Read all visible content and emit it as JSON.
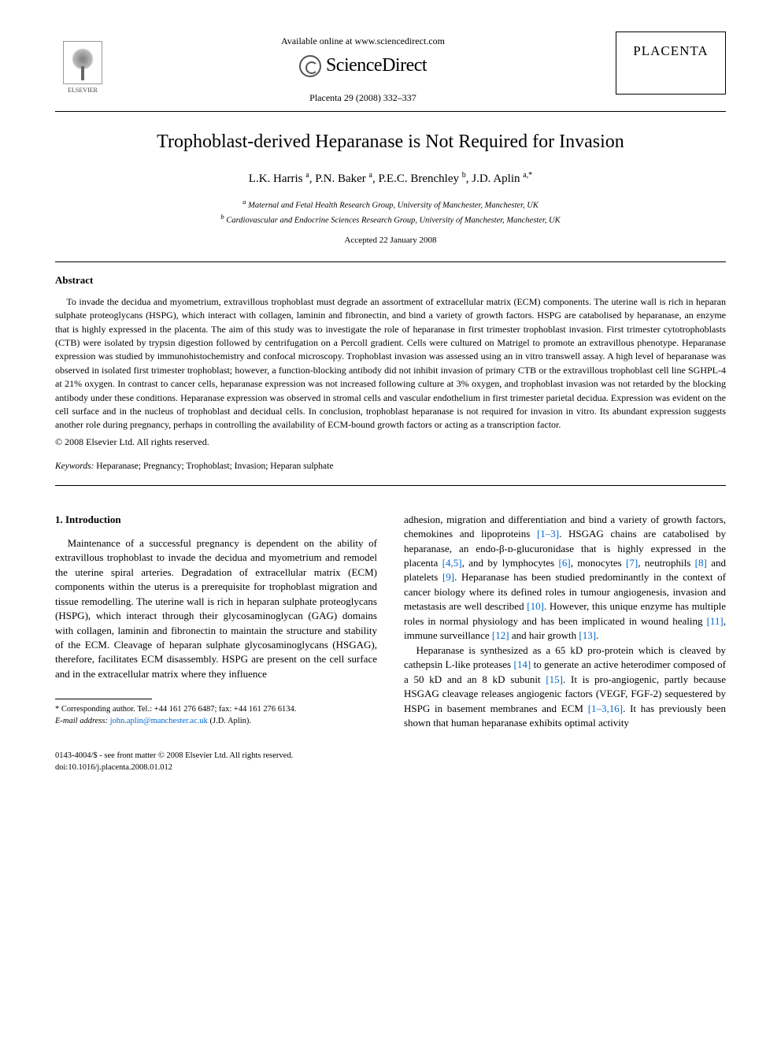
{
  "header": {
    "publisher_name": "ELSEVIER",
    "available_line": "Available online at www.sciencedirect.com",
    "sd_brand": "ScienceDirect",
    "journal_ref": "Placenta 29 (2008) 332–337",
    "journal_name": "PLACENTA"
  },
  "article": {
    "title": "Trophoblast-derived Heparanase is Not Required for Invasion",
    "authors_html": "L.K. Harris <sup>a</sup>, P.N. Baker <sup>a</sup>, P.E.C. Brenchley <sup>b</sup>, J.D. Aplin <sup>a,*</sup>",
    "affiliations": {
      "a": "Maternal and Fetal Health Research Group, University of Manchester, Manchester, UK",
      "b": "Cardiovascular and Endocrine Sciences Research Group, University of Manchester, Manchester, UK"
    },
    "accepted": "Accepted 22 January 2008"
  },
  "abstract": {
    "heading": "Abstract",
    "text": "To invade the decidua and myometrium, extravillous trophoblast must degrade an assortment of extracellular matrix (ECM) components. The uterine wall is rich in heparan sulphate proteoglycans (HSPG), which interact with collagen, laminin and fibronectin, and bind a variety of growth factors. HSPG are catabolised by heparanase, an enzyme that is highly expressed in the placenta. The aim of this study was to investigate the role of heparanase in first trimester trophoblast invasion. First trimester cytotrophoblasts (CTB) were isolated by trypsin digestion followed by centrifugation on a Percoll gradient. Cells were cultured on Matrigel to promote an extravillous phenotype. Heparanase expression was studied by immunohistochemistry and confocal microscopy. Trophoblast invasion was assessed using an in vitro transwell assay. A high level of heparanase was observed in isolated first trimester trophoblast; however, a function-blocking antibody did not inhibit invasion of primary CTB or the extravillous trophoblast cell line SGHPL-4 at 21% oxygen. In contrast to cancer cells, heparanase expression was not increased following culture at 3% oxygen, and trophoblast invasion was not retarded by the blocking antibody under these conditions. Heparanase expression was observed in stromal cells and vascular endothelium in first trimester parietal decidua. Expression was evident on the cell surface and in the nucleus of trophoblast and decidual cells. In conclusion, trophoblast heparanase is not required for invasion in vitro. Its abundant expression suggests another role during pregnancy, perhaps in controlling the availability of ECM-bound growth factors or acting as a transcription factor.",
    "copyright": "© 2008 Elsevier Ltd. All rights reserved.",
    "keywords_label": "Keywords:",
    "keywords": "Heparanase; Pregnancy; Trophoblast; Invasion; Heparan sulphate"
  },
  "body": {
    "section_heading": "1. Introduction",
    "col1_p1": "Maintenance of a successful pregnancy is dependent on the ability of extravillous trophoblast to invade the decidua and myometrium and remodel the uterine spiral arteries. Degradation of extracellular matrix (ECM) components within the uterus is a prerequisite for trophoblast migration and tissue remodelling. The uterine wall is rich in heparan sulphate proteoglycans (HSPG), which interact through their glycosaminoglycan (GAG) domains with collagen, laminin and fibronectin to maintain the structure and stability of the ECM. Cleavage of heparan sulphate glycosaminoglycans (HSGAG), therefore, facilitates ECM disassembly. HSPG are present on the cell surface and in the extracellular matrix where they influence",
    "col2_p1_pre": "adhesion, migration and differentiation and bind a variety of growth factors, chemokines and lipoproteins ",
    "col2_p1_ref1": "[1–3]",
    "col2_p1_mid1": ". HSGAG chains are catabolised by heparanase, an endo-β-ᴅ-glucuronidase that is highly expressed in the placenta ",
    "col2_p1_ref2": "[4,5]",
    "col2_p1_mid2": ", and by lymphocytes ",
    "col2_p1_ref3": "[6]",
    "col2_p1_mid3": ", monocytes ",
    "col2_p1_ref4": "[7]",
    "col2_p1_mid4": ", neutrophils ",
    "col2_p1_ref5": "[8]",
    "col2_p1_mid5": " and platelets ",
    "col2_p1_ref6": "[9]",
    "col2_p1_mid6": ". Heparanase has been studied predominantly in the context of cancer biology where its defined roles in tumour angiogenesis, invasion and metastasis are well described ",
    "col2_p1_ref7": "[10]",
    "col2_p1_mid7": ". However, this unique enzyme has multiple roles in normal physiology and has been implicated in wound healing ",
    "col2_p1_ref8": "[11]",
    "col2_p1_mid8": ", immune surveillance ",
    "col2_p1_ref9": "[12]",
    "col2_p1_mid9": " and hair growth ",
    "col2_p1_ref10": "[13]",
    "col2_p1_end": ".",
    "col2_p2_pre": "Heparanase is synthesized as a 65 kD pro-protein which is cleaved by cathepsin L-like proteases ",
    "col2_p2_ref1": "[14]",
    "col2_p2_mid1": " to generate an active heterodimer composed of a 50 kD and an 8 kD subunit ",
    "col2_p2_ref2": "[15]",
    "col2_p2_mid2": ". It is pro-angiogenic, partly because HSGAG cleavage releases angiogenic factors (VEGF, FGF-2) sequestered by HSPG in basement membranes and ECM ",
    "col2_p2_ref3": "[1–3,16]",
    "col2_p2_end": ". It has previously been shown that human heparanase exhibits optimal activity"
  },
  "footnote": {
    "corr": "* Corresponding author. Tel.: +44 161 276 6487; fax: +44 161 276 6134.",
    "email_label": "E-mail address:",
    "email": "john.aplin@manchester.ac.uk",
    "email_suffix": "(J.D. Aplin)."
  },
  "footer": {
    "left_line1": "0143-4004/$ - see front matter © 2008 Elsevier Ltd. All rights reserved.",
    "left_line2": "doi:10.1016/j.placenta.2008.01.012"
  },
  "colors": {
    "link": "#0066cc",
    "text": "#000000",
    "bg": "#ffffff"
  }
}
